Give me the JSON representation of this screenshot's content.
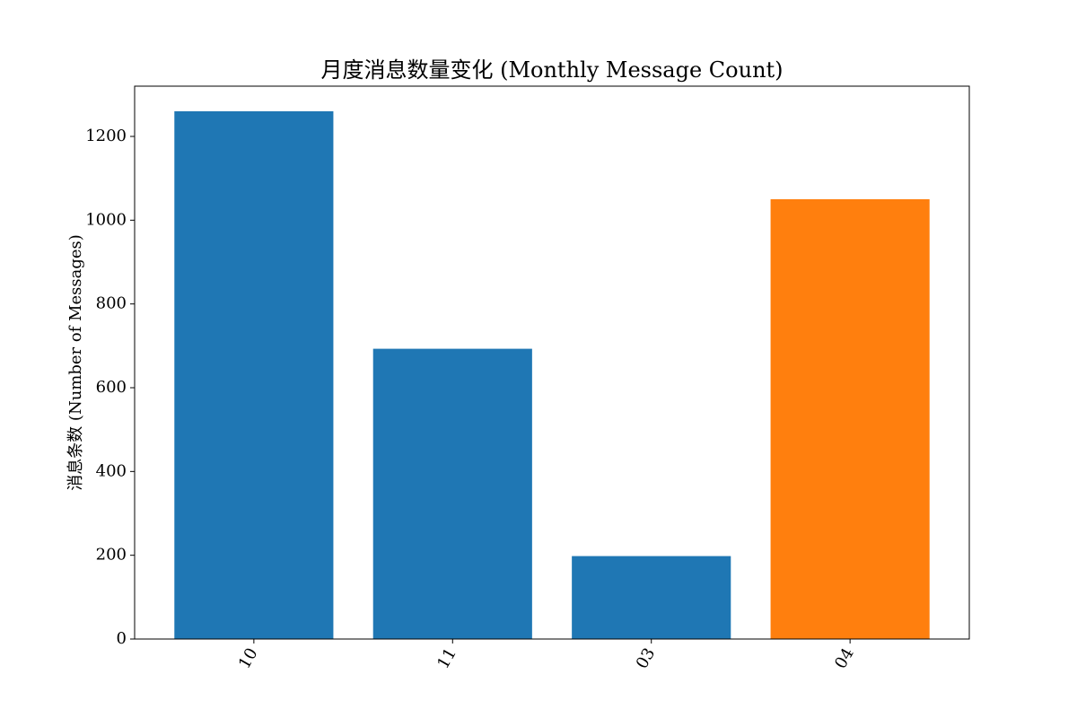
{
  "chart_data": {
    "type": "bar",
    "title": "月度消息数量变化 (Monthly Message Count)",
    "xlabel": "",
    "ylabel": "消息条数 (Number of Messages)",
    "categories": [
      "10",
      "11",
      "03",
      "04"
    ],
    "values": [
      1260,
      693,
      198,
      1050
    ],
    "colors": [
      "#1f77b4",
      "#1f77b4",
      "#1f77b4",
      "#ff7f0e"
    ],
    "ylim": [
      0,
      1320
    ],
    "yticks": [
      0,
      200,
      400,
      600,
      800,
      1000,
      1200
    ],
    "grid": false,
    "legend": "none"
  }
}
